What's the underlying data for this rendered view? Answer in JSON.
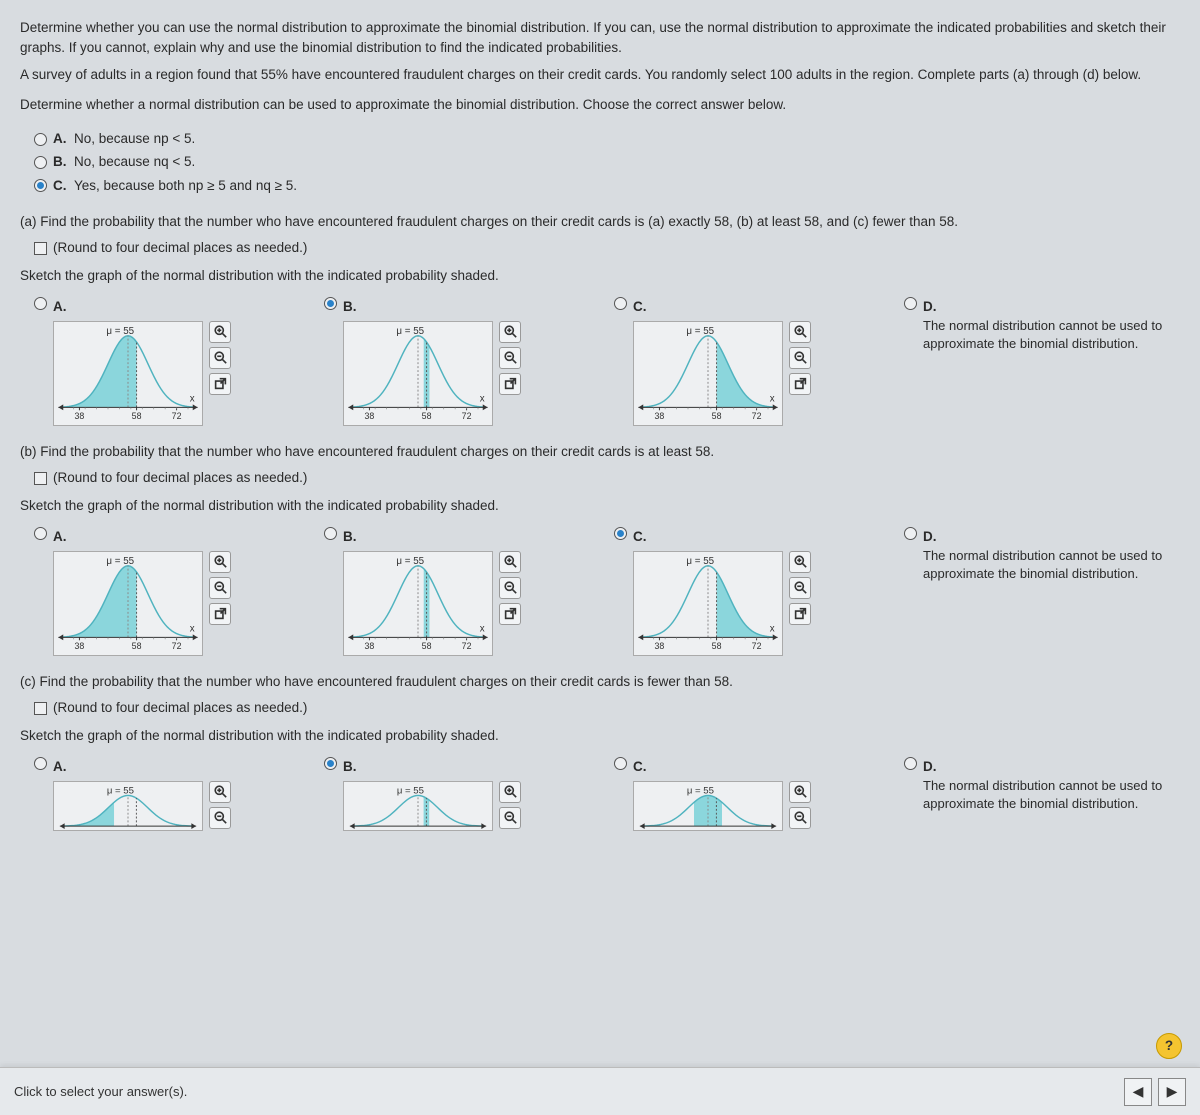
{
  "intro": {
    "p1": "Determine whether you can use the normal distribution to approximate the binomial distribution. If you can, use the normal distribution to approximate the indicated probabilities and sketch their graphs. If you cannot, explain why and use the binomial distribution to find the indicated probabilities.",
    "p2": "A survey of adults in a region found that 55% have encountered fraudulent charges on their credit cards. You randomly select 100 adults in the region. Complete parts (a) through (d) below.",
    "p3": "Determine whether a normal distribution can be used to approximate the binomial distribution. Choose the correct answer below."
  },
  "mc1": {
    "a": "No, because np < 5.",
    "b": "No, because nq < 5.",
    "c": "Yes, because both np ≥ 5 and nq ≥ 5.",
    "selected": "c"
  },
  "parts": {
    "a": {
      "prompt": "(a) Find the probability that the number who have encountered fraudulent charges on their credit cards is (a) exactly 58, (b) at least 58, and (c) fewer than 58.",
      "round": "(Round to four decimal places as needed.)",
      "sketch": "Sketch the graph of the normal distribution with the indicated probability shaded.",
      "selected": "b",
      "d_text": "The normal distribution cannot be used to approximate the binomial distribution."
    },
    "b": {
      "prompt": "(b) Find the probability that the number who have encountered fraudulent charges on their credit cards is at least 58.",
      "round": "(Round to four decimal places as needed.)",
      "sketch": "Sketch the graph of the normal distribution with the indicated probability shaded.",
      "selected": "c",
      "d_text": "The normal distribution cannot be used to approximate the binomial distribution."
    },
    "c": {
      "prompt": "(c) Find the probability that the number who have encountered fraudulent charges on their credit cards is fewer than 58.",
      "round": "(Round to four decimal places as needed.)",
      "sketch": "Sketch the graph of the normal distribution with the indicated probability shaded.",
      "selected": "b",
      "d_text": "The normal distribution cannot be used to approximate the binomial distribution."
    }
  },
  "graph": {
    "mu_label": "μ = 55",
    "x_label": "x",
    "ticks": [
      "38",
      "58",
      "72"
    ],
    "curve_color": "#4fb3bf",
    "fill_color": "#7fd3d9",
    "axis_color": "#333333",
    "bg": "#eef0f2",
    "mean_x": 55,
    "xlim": [
      32,
      78
    ],
    "font": 10
  },
  "footer": {
    "left": "Click to select your answer(s)."
  }
}
